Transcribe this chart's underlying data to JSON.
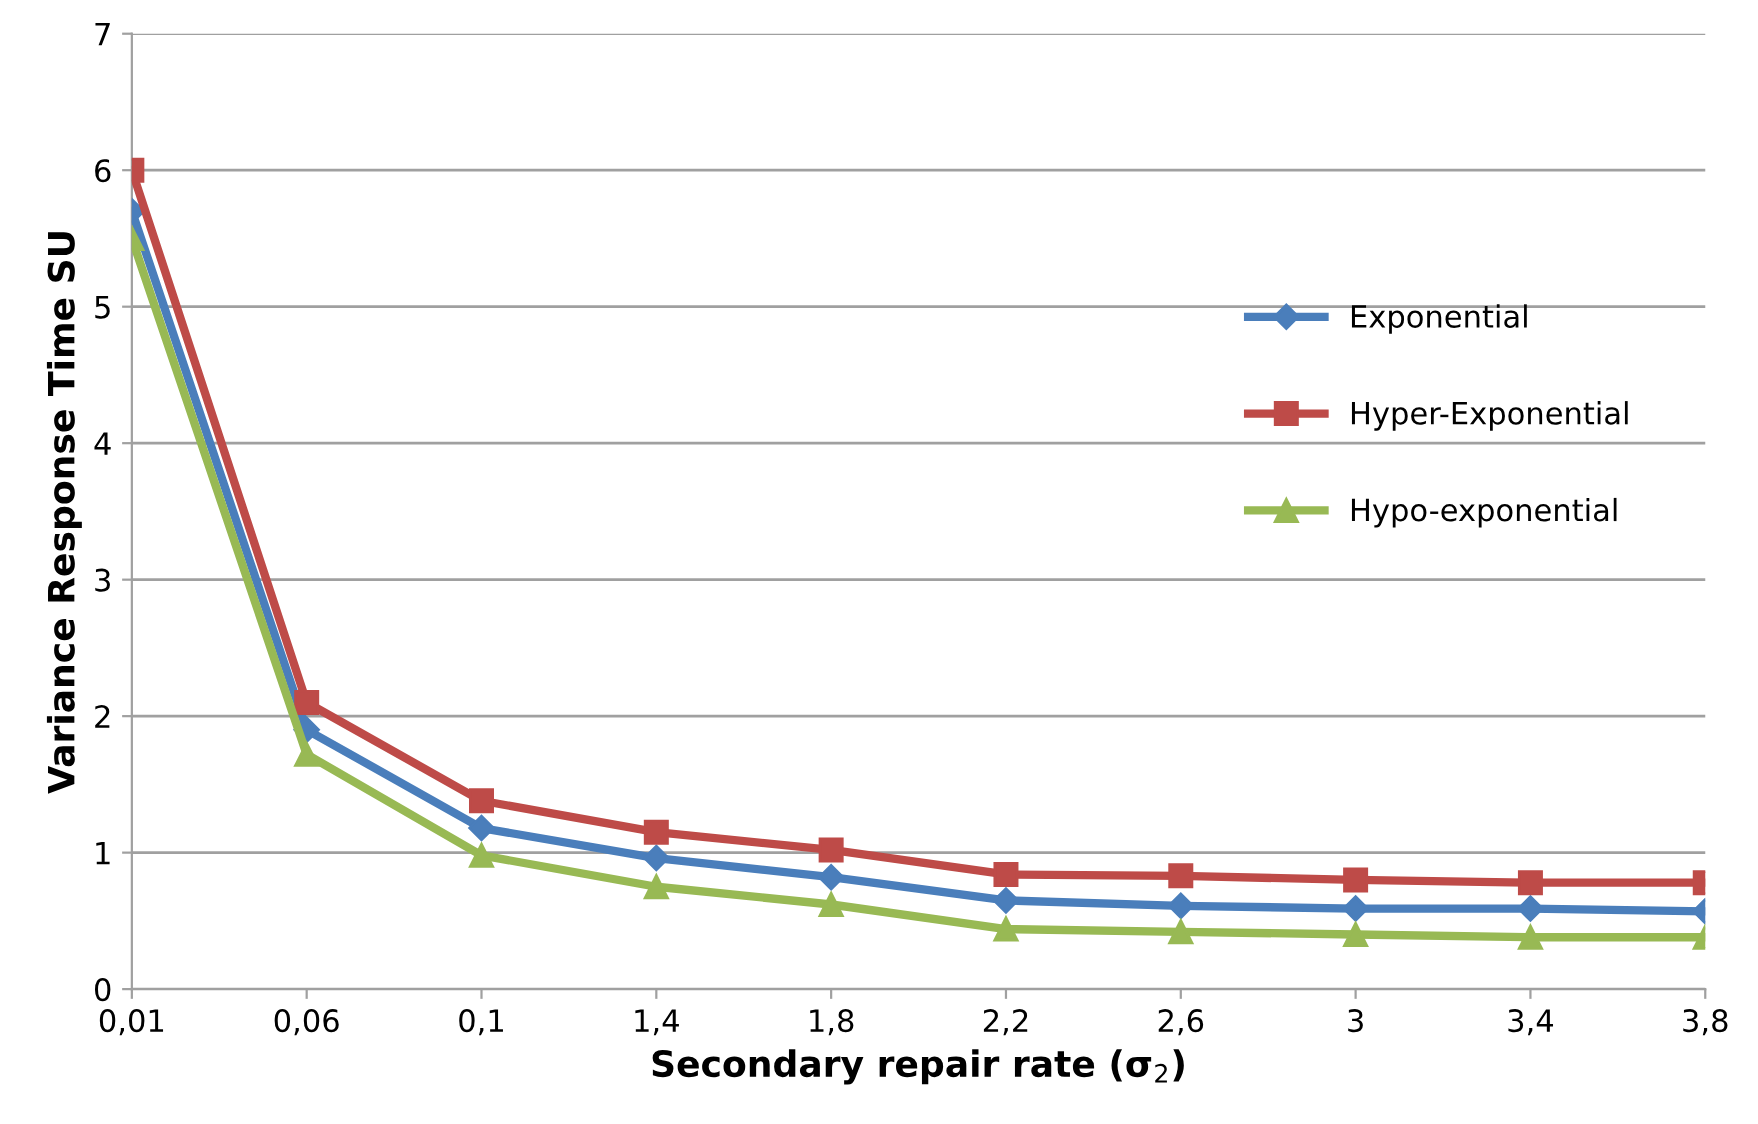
{
  "chart_data": {
    "type": "line",
    "xlabel": "Secondary repair rate (σ$_{2}$)",
    "ylabel": "Variance Response Time SU",
    "categories": [
      "0,01",
      "0,06",
      "0,1",
      "1,4",
      "1,8",
      "2,2",
      "2,6",
      "3",
      "3,4",
      "3,8"
    ],
    "series": [
      {
        "name": "Exponential",
        "color": "#4a7ebb",
        "marker": "diamond",
        "values": [
          5.7,
          1.9,
          1.18,
          0.96,
          0.82,
          0.65,
          0.61,
          0.59,
          0.59,
          0.57
        ]
      },
      {
        "name": "Hyper-Exponential",
        "color": "#be4b48",
        "marker": "square",
        "values": [
          6.0,
          2.1,
          1.38,
          1.15,
          1.02,
          0.84,
          0.83,
          0.8,
          0.78,
          0.78
        ]
      },
      {
        "name": "Hypo-exponential",
        "color": "#98b954",
        "marker": "triangle",
        "values": [
          5.5,
          1.72,
          0.98,
          0.75,
          0.62,
          0.44,
          0.42,
          0.4,
          0.38,
          0.38
        ]
      }
    ],
    "ylim": [
      0,
      7
    ],
    "yticks": [
      0,
      1,
      2,
      3,
      4,
      5,
      6,
      7
    ],
    "grid": "y",
    "legend": "right",
    "line_style": "solid"
  }
}
